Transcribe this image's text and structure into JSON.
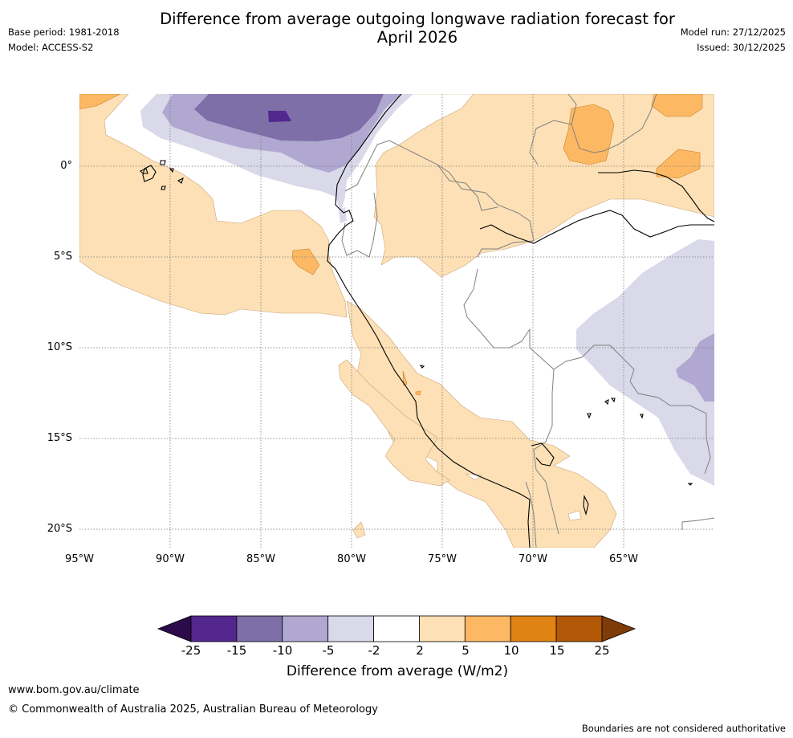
{
  "header": {
    "title_line1": "Difference from average outgoing longwave radiation forecast for",
    "title_line2": "April 2026",
    "base_period": "Base period: 1981-2018",
    "model": "Model: ACCESS-S2",
    "model_run": "Model run: 27/12/2025",
    "issued": "Issued: 30/12/2025"
  },
  "map": {
    "lon_range": [
      "95°W",
      "60.5°W"
    ],
    "lat_range": [
      "4°N",
      "21°S"
    ],
    "grid": true,
    "y_ticks": [
      "0°",
      "5°S",
      "10°S",
      "15°S",
      "20°S"
    ],
    "x_ticks": [
      "95°W",
      "90°W",
      "85°W",
      "80°W",
      "75°W",
      "70°W",
      "65°W"
    ]
  },
  "colorbar": {
    "title": "Difference from average (W/m2)",
    "labels": [
      "-25",
      "-15",
      "-10",
      "-5",
      "-2",
      "2",
      "5",
      "10",
      "15",
      "25"
    ],
    "colors": [
      "#2d0a4a",
      "#54278f",
      "#7f6fa8",
      "#b0a8d0",
      "#d9d9ea",
      "#ffffff",
      "#fde0b5",
      "#fdb863",
      "#e08214",
      "#b35806",
      "#7f3b08"
    ]
  },
  "footer": {
    "website": "www.bom.gov.au/climate",
    "copyright": "© Commonwealth of Australia 2025, Australian Bureau of Meteorology",
    "disclaimer": "Boundaries are not considered authoritative"
  }
}
